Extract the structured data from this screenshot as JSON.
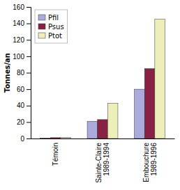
{
  "chart_data": {
    "type": "bar",
    "categories": [
      "Témoin",
      "Sainte-Claire\n1989-1994",
      "Embouchure\n1989-1996"
    ],
    "series": [
      {
        "name": "Pfil",
        "color": "#aaaadd",
        "values": [
          0.5,
          21,
          60
        ]
      },
      {
        "name": "Psus",
        "color": "#882244",
        "values": [
          1.0,
          23,
          85
        ]
      },
      {
        "name": "Ptot",
        "color": "#eeeebb",
        "values": [
          1.2,
          43,
          145
        ]
      }
    ],
    "ylabel": "Tonnes/an",
    "ylim": [
      0,
      160
    ],
    "yticks": [
      0,
      20,
      40,
      60,
      80,
      100,
      120,
      140,
      160
    ],
    "legend": "upper left"
  }
}
